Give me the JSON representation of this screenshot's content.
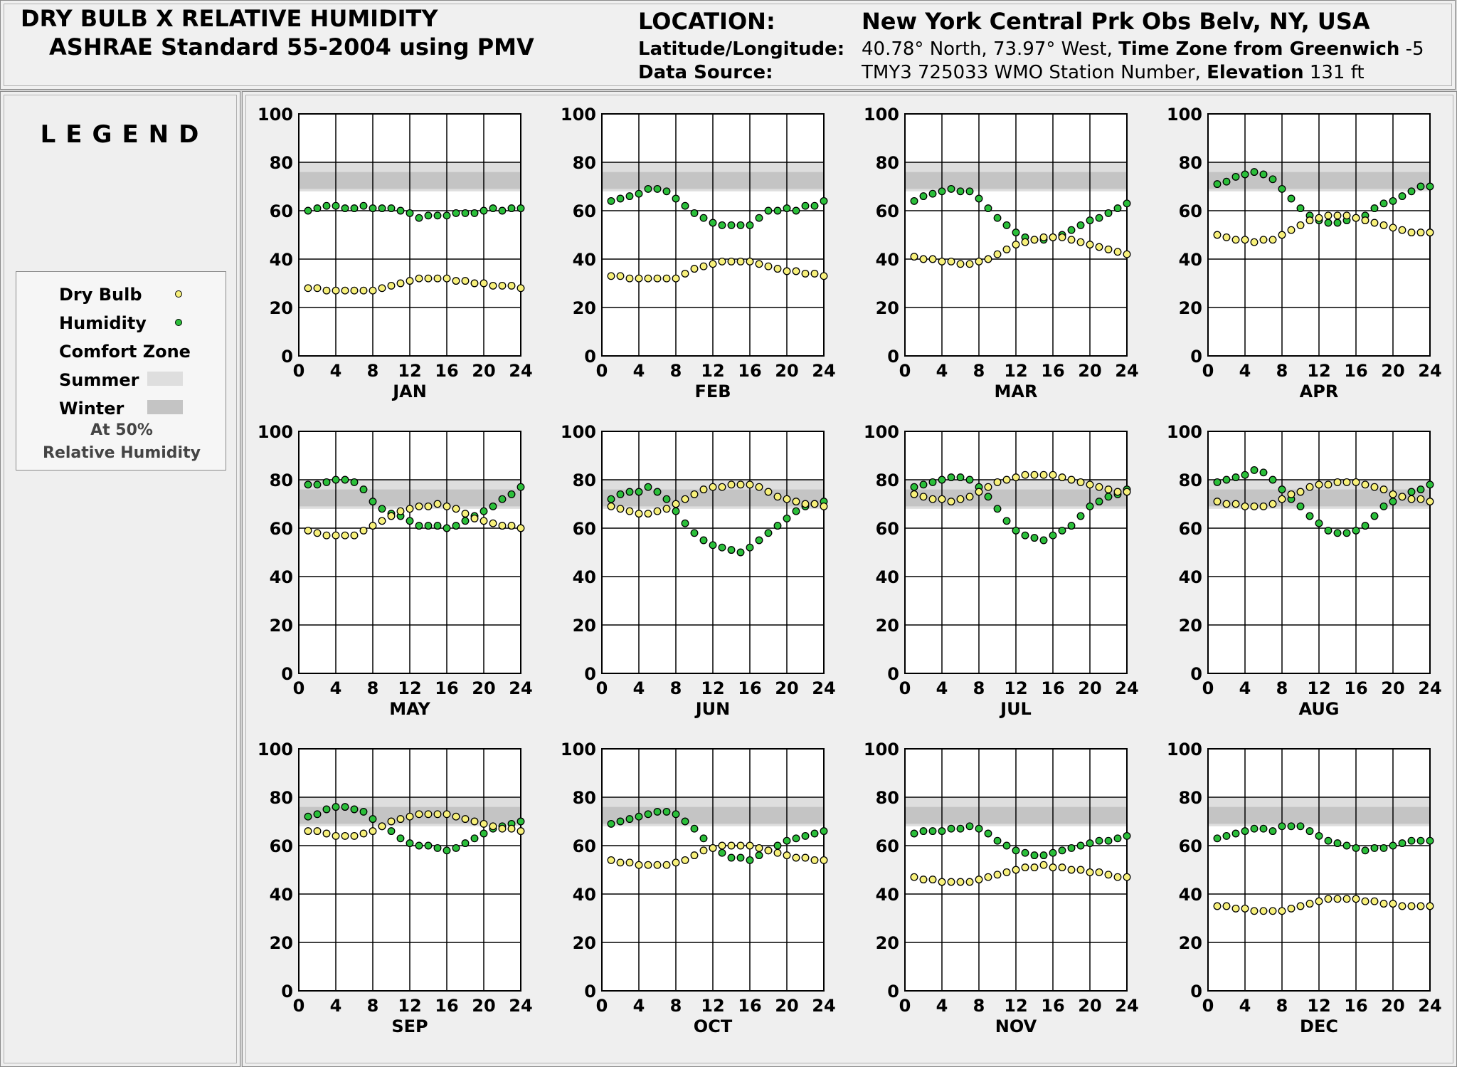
{
  "header": {
    "title_line1": "DRY BULB  X  RELATIVE HUMIDITY",
    "title_line2": "ASHRAE Standard 55-2004 using PMV",
    "location_label": "LOCATION:",
    "location_value": "New York Central Prk Obs Belv, NY, USA",
    "latlon_label": "Latitude/Longitude:",
    "latlon_value": "40.78° North, 73.97° West, ",
    "tz_label": "Time Zone from Greenwich",
    "tz_value": " -5",
    "source_label": "Data Source:",
    "source_value": "TMY3     725033 WMO Station Number, ",
    "elev_label": "Elevation",
    "elev_value": " 131 ft"
  },
  "legend": {
    "title": "LEGEND",
    "dry_bulb": "Dry Bulb",
    "humidity": "Humidity",
    "comfort_zone": "Comfort Zone",
    "summer": "Summer",
    "winter": "Winter",
    "note1": "At 50%",
    "note2": "Relative Humidity"
  },
  "colors": {
    "dry_bulb": "#f7f07a",
    "humidity": "#2bbf3a",
    "summer_zone": "#dedede",
    "winter_zone": "#c4c4c4"
  },
  "chart_data": {
    "type": "scatter",
    "x_ticks": [
      0,
      4,
      8,
      12,
      16,
      20,
      24
    ],
    "y_ticks": [
      0,
      20,
      40,
      60,
      80,
      100
    ],
    "xlim": [
      0,
      24
    ],
    "ylim": [
      0,
      100
    ],
    "comfort_zone": {
      "summer": [
        68,
        80
      ],
      "winter": [
        69,
        76
      ]
    },
    "hours": [
      1,
      2,
      3,
      4,
      5,
      6,
      7,
      8,
      9,
      10,
      11,
      12,
      13,
      14,
      15,
      16,
      17,
      18,
      19,
      20,
      21,
      22,
      23,
      24
    ],
    "months": [
      {
        "name": "JAN",
        "dry_bulb": [
          28,
          28,
          27,
          27,
          27,
          27,
          27,
          27,
          28,
          29,
          30,
          31,
          32,
          32,
          32,
          32,
          31,
          31,
          30,
          30,
          29,
          29,
          29,
          28
        ],
        "humidity": [
          60,
          61,
          62,
          62,
          61,
          61,
          62,
          61,
          61,
          61,
          60,
          59,
          57,
          58,
          58,
          58,
          59,
          59,
          59,
          60,
          61,
          60,
          61,
          61
        ]
      },
      {
        "name": "FEB",
        "dry_bulb": [
          33,
          33,
          32,
          32,
          32,
          32,
          32,
          32,
          34,
          36,
          37,
          38,
          39,
          39,
          39,
          39,
          38,
          37,
          36,
          35,
          35,
          34,
          34,
          33
        ],
        "humidity": [
          64,
          65,
          66,
          67,
          69,
          69,
          68,
          65,
          62,
          59,
          57,
          55,
          54,
          54,
          54,
          54,
          57,
          60,
          60,
          61,
          60,
          62,
          62,
          64
        ]
      },
      {
        "name": "MAR",
        "dry_bulb": [
          41,
          40,
          40,
          39,
          39,
          38,
          38,
          39,
          40,
          42,
          44,
          46,
          47,
          48,
          49,
          49,
          49,
          48,
          47,
          46,
          45,
          44,
          43,
          42
        ],
        "humidity": [
          64,
          66,
          67,
          68,
          69,
          68,
          68,
          65,
          61,
          57,
          54,
          51,
          49,
          48,
          48,
          49,
          50,
          52,
          54,
          56,
          57,
          59,
          61,
          63
        ]
      },
      {
        "name": "APR",
        "dry_bulb": [
          50,
          49,
          48,
          48,
          47,
          48,
          48,
          50,
          52,
          54,
          56,
          57,
          58,
          58,
          58,
          57,
          56,
          55,
          54,
          53,
          52,
          51,
          51,
          51
        ],
        "humidity": [
          71,
          72,
          74,
          75,
          76,
          75,
          73,
          69,
          65,
          61,
          58,
          56,
          55,
          55,
          56,
          57,
          58,
          61,
          63,
          64,
          66,
          68,
          70,
          70
        ]
      },
      {
        "name": "MAY",
        "dry_bulb": [
          59,
          58,
          57,
          57,
          57,
          57,
          59,
          61,
          63,
          65,
          67,
          68,
          69,
          69,
          70,
          69,
          68,
          66,
          64,
          63,
          62,
          61,
          61,
          60
        ],
        "humidity": [
          78,
          78,
          79,
          80,
          80,
          79,
          76,
          71,
          68,
          66,
          65,
          63,
          61,
          61,
          61,
          60,
          61,
          63,
          65,
          67,
          69,
          72,
          74,
          77
        ]
      },
      {
        "name": "JUN",
        "dry_bulb": [
          69,
          68,
          67,
          66,
          66,
          67,
          68,
          70,
          72,
          74,
          76,
          77,
          77,
          78,
          78,
          78,
          77,
          75,
          73,
          72,
          71,
          70,
          70,
          69
        ],
        "humidity": [
          72,
          74,
          75,
          75,
          77,
          75,
          72,
          67,
          62,
          58,
          55,
          53,
          52,
          51,
          50,
          52,
          55,
          58,
          61,
          64,
          67,
          69,
          70,
          71
        ]
      },
      {
        "name": "JUL",
        "dry_bulb": [
          74,
          73,
          72,
          72,
          71,
          72,
          73,
          75,
          77,
          79,
          80,
          81,
          82,
          82,
          82,
          82,
          81,
          80,
          79,
          78,
          77,
          76,
          75,
          75
        ],
        "humidity": [
          77,
          78,
          79,
          80,
          81,
          81,
          80,
          77,
          73,
          68,
          63,
          59,
          57,
          56,
          55,
          57,
          59,
          61,
          65,
          69,
          71,
          73,
          74,
          76
        ]
      },
      {
        "name": "AUG",
        "dry_bulb": [
          71,
          70,
          70,
          69,
          69,
          69,
          70,
          72,
          74,
          75,
          77,
          78,
          78,
          79,
          79,
          79,
          78,
          77,
          76,
          74,
          73,
          72,
          72,
          71
        ],
        "humidity": [
          79,
          80,
          81,
          82,
          84,
          83,
          80,
          76,
          72,
          69,
          65,
          62,
          59,
          58,
          58,
          59,
          61,
          65,
          69,
          71,
          73,
          75,
          76,
          78
        ]
      },
      {
        "name": "SEP",
        "dry_bulb": [
          66,
          66,
          65,
          64,
          64,
          64,
          65,
          66,
          68,
          70,
          71,
          72,
          73,
          73,
          73,
          73,
          72,
          71,
          70,
          69,
          68,
          67,
          67,
          66
        ],
        "humidity": [
          72,
          73,
          75,
          76,
          76,
          75,
          74,
          71,
          68,
          66,
          63,
          61,
          60,
          60,
          59,
          58,
          59,
          61,
          63,
          65,
          67,
          68,
          69,
          70
        ]
      },
      {
        "name": "OCT",
        "dry_bulb": [
          54,
          53,
          53,
          52,
          52,
          52,
          52,
          53,
          54,
          56,
          58,
          59,
          60,
          60,
          60,
          60,
          59,
          58,
          57,
          56,
          55,
          55,
          54,
          54
        ],
        "humidity": [
          69,
          70,
          71,
          72,
          73,
          74,
          74,
          73,
          70,
          67,
          63,
          59,
          57,
          55,
          55,
          54,
          56,
          58,
          60,
          62,
          63,
          64,
          65,
          66
        ]
      },
      {
        "name": "NOV",
        "dry_bulb": [
          47,
          46,
          46,
          45,
          45,
          45,
          45,
          46,
          47,
          48,
          49,
          50,
          51,
          51,
          52,
          51,
          51,
          50,
          50,
          49,
          49,
          48,
          47,
          47
        ],
        "humidity": [
          65,
          66,
          66,
          66,
          67,
          67,
          68,
          67,
          65,
          62,
          60,
          58,
          57,
          56,
          56,
          57,
          58,
          59,
          60,
          61,
          62,
          62,
          63,
          64
        ]
      },
      {
        "name": "DEC",
        "dry_bulb": [
          35,
          35,
          34,
          34,
          33,
          33,
          33,
          33,
          34,
          35,
          36,
          37,
          38,
          38,
          38,
          38,
          37,
          37,
          36,
          36,
          35,
          35,
          35,
          35
        ],
        "humidity": [
          63,
          64,
          65,
          66,
          67,
          67,
          66,
          68,
          68,
          68,
          66,
          64,
          62,
          61,
          60,
          59,
          58,
          59,
          59,
          60,
          61,
          62,
          62,
          62
        ]
      }
    ]
  }
}
